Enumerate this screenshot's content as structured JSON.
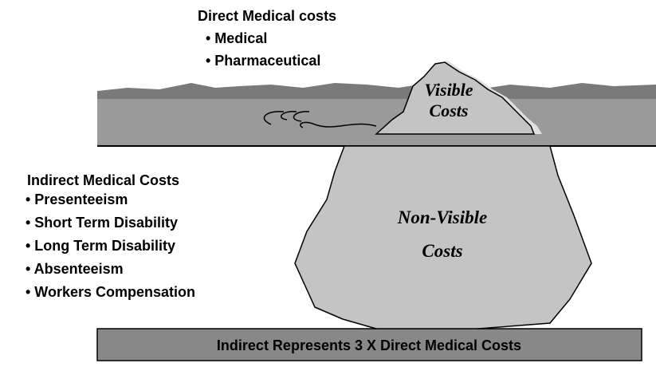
{
  "direct": {
    "title": "Direct Medical costs",
    "items": [
      "• Medical",
      "• Pharmaceutical"
    ]
  },
  "iceberg": {
    "visible": [
      "Visible",
      "Costs"
    ],
    "non_visible": [
      "Non-Visible",
      "Costs"
    ]
  },
  "indirect": {
    "title": "Indirect Medical Costs",
    "items": [
      "• Presenteeism",
      "• Short Term Disability",
      "• Long Term Disability",
      "• Absenteeism",
      "• Workers Compensation"
    ]
  },
  "banner": "Indirect Represents 3 X Direct Medical Costs"
}
